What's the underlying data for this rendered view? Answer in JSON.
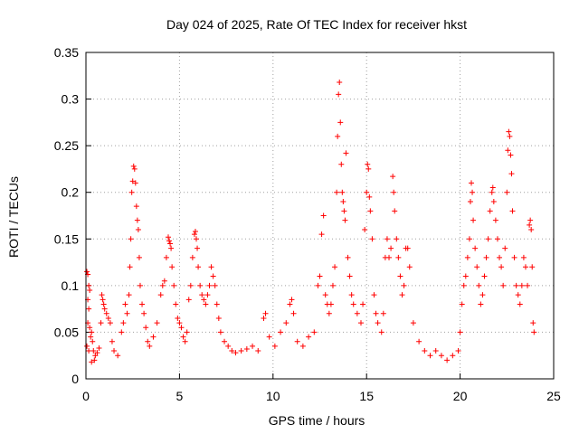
{
  "chart_data": {
    "type": "scatter",
    "title": "Day 024 of 2025, Rate Of TEC Index for receiver hkst",
    "xlabel": "GPS time / hours",
    "ylabel": "ROTI / TECUs",
    "xlim": [
      0,
      25
    ],
    "ylim": [
      0,
      0.35
    ],
    "x_ticks": [
      0,
      5,
      10,
      15,
      20,
      25
    ],
    "y_ticks": [
      0,
      0.05,
      0.1,
      0.15,
      0.2,
      0.25,
      0.3,
      0.35
    ],
    "x_tick_labels": [
      "0",
      "5",
      "10",
      "15",
      "20",
      "25"
    ],
    "y_tick_labels": [
      "0",
      "0.05",
      "0.1",
      "0.15",
      "0.2",
      "0.25",
      "0.3",
      "0.35"
    ],
    "grid": true,
    "marker": "plus",
    "series_color": "#ff0000",
    "series": [
      {
        "points": [
          [
            0.05,
            0.115
          ],
          [
            0.1,
            0.112
          ],
          [
            0.15,
            0.1
          ],
          [
            0.2,
            0.095
          ],
          [
            0.1,
            0.085
          ],
          [
            0.15,
            0.075
          ],
          [
            0.1,
            0.06
          ],
          [
            0.2,
            0.055
          ],
          [
            0.3,
            0.05
          ],
          [
            0.25,
            0.045
          ],
          [
            0.35,
            0.04
          ],
          [
            0.05,
            0.035
          ],
          [
            0.15,
            0.03
          ],
          [
            0.4,
            0.03
          ],
          [
            0.5,
            0.025
          ],
          [
            0.6,
            0.028
          ],
          [
            0.45,
            0.02
          ],
          [
            0.3,
            0.018
          ],
          [
            0.7,
            0.033
          ],
          [
            0.8,
            0.06
          ],
          [
            0.85,
            0.09
          ],
          [
            0.9,
            0.085
          ],
          [
            0.95,
            0.08
          ],
          [
            1.0,
            0.075
          ],
          [
            1.1,
            0.07
          ],
          [
            1.2,
            0.065
          ],
          [
            1.3,
            0.06
          ],
          [
            1.4,
            0.04
          ],
          [
            1.5,
            0.03
          ],
          [
            1.7,
            0.025
          ],
          [
            1.9,
            0.05
          ],
          [
            2.0,
            0.06
          ],
          [
            2.1,
            0.08
          ],
          [
            2.2,
            0.07
          ],
          [
            2.3,
            0.09
          ],
          [
            2.35,
            0.12
          ],
          [
            2.4,
            0.15
          ],
          [
            2.45,
            0.2
          ],
          [
            2.5,
            0.212
          ],
          [
            2.55,
            0.228
          ],
          [
            2.6,
            0.225
          ],
          [
            2.65,
            0.21
          ],
          [
            2.7,
            0.185
          ],
          [
            2.75,
            0.17
          ],
          [
            2.8,
            0.16
          ],
          [
            2.85,
            0.13
          ],
          [
            2.9,
            0.1
          ],
          [
            3.0,
            0.08
          ],
          [
            3.1,
            0.07
          ],
          [
            3.2,
            0.055
          ],
          [
            3.3,
            0.04
          ],
          [
            3.4,
            0.035
          ],
          [
            3.6,
            0.045
          ],
          [
            3.8,
            0.06
          ],
          [
            4.0,
            0.09
          ],
          [
            4.1,
            0.1
          ],
          [
            4.2,
            0.105
          ],
          [
            4.3,
            0.13
          ],
          [
            4.4,
            0.152
          ],
          [
            4.45,
            0.148
          ],
          [
            4.5,
            0.145
          ],
          [
            4.55,
            0.14
          ],
          [
            4.6,
            0.12
          ],
          [
            4.7,
            0.1
          ],
          [
            4.8,
            0.08
          ],
          [
            4.9,
            0.065
          ],
          [
            5.0,
            0.06
          ],
          [
            5.1,
            0.055
          ],
          [
            5.2,
            0.045
          ],
          [
            5.3,
            0.04
          ],
          [
            5.4,
            0.05
          ],
          [
            5.5,
            0.085
          ],
          [
            5.6,
            0.1
          ],
          [
            5.7,
            0.13
          ],
          [
            5.8,
            0.155
          ],
          [
            5.85,
            0.158
          ],
          [
            5.9,
            0.15
          ],
          [
            5.95,
            0.14
          ],
          [
            6.0,
            0.12
          ],
          [
            6.1,
            0.1
          ],
          [
            6.2,
            0.09
          ],
          [
            6.3,
            0.085
          ],
          [
            6.4,
            0.08
          ],
          [
            6.5,
            0.09
          ],
          [
            6.6,
            0.1
          ],
          [
            6.7,
            0.12
          ],
          [
            6.8,
            0.11
          ],
          [
            6.9,
            0.1
          ],
          [
            7.0,
            0.08
          ],
          [
            7.1,
            0.065
          ],
          [
            7.2,
            0.05
          ],
          [
            7.4,
            0.04
          ],
          [
            7.6,
            0.035
          ],
          [
            7.8,
            0.03
          ],
          [
            8.0,
            0.028
          ],
          [
            8.3,
            0.03
          ],
          [
            8.6,
            0.032
          ],
          [
            8.9,
            0.035
          ],
          [
            9.2,
            0.03
          ],
          [
            9.5,
            0.065
          ],
          [
            9.6,
            0.07
          ],
          [
            9.8,
            0.045
          ],
          [
            10.1,
            0.035
          ],
          [
            10.4,
            0.05
          ],
          [
            10.7,
            0.06
          ],
          [
            10.9,
            0.08
          ],
          [
            11.0,
            0.085
          ],
          [
            11.1,
            0.07
          ],
          [
            11.3,
            0.04
          ],
          [
            11.6,
            0.035
          ],
          [
            11.9,
            0.045
          ],
          [
            12.2,
            0.05
          ],
          [
            12.4,
            0.1
          ],
          [
            12.5,
            0.11
          ],
          [
            12.6,
            0.155
          ],
          [
            12.7,
            0.175
          ],
          [
            12.8,
            0.09
          ],
          [
            12.9,
            0.08
          ],
          [
            13.0,
            0.07
          ],
          [
            13.1,
            0.08
          ],
          [
            13.2,
            0.1
          ],
          [
            13.3,
            0.12
          ],
          [
            13.4,
            0.2
          ],
          [
            13.45,
            0.26
          ],
          [
            13.5,
            0.305
          ],
          [
            13.55,
            0.318
          ],
          [
            13.6,
            0.275
          ],
          [
            13.65,
            0.23
          ],
          [
            13.7,
            0.2
          ],
          [
            13.75,
            0.19
          ],
          [
            13.8,
            0.18
          ],
          [
            13.85,
            0.17
          ],
          [
            13.9,
            0.242
          ],
          [
            14.0,
            0.13
          ],
          [
            14.1,
            0.11
          ],
          [
            14.2,
            0.09
          ],
          [
            14.3,
            0.08
          ],
          [
            14.5,
            0.07
          ],
          [
            14.7,
            0.06
          ],
          [
            14.8,
            0.08
          ],
          [
            14.9,
            0.16
          ],
          [
            15.0,
            0.2
          ],
          [
            15.05,
            0.23
          ],
          [
            15.1,
            0.225
          ],
          [
            15.15,
            0.195
          ],
          [
            15.2,
            0.18
          ],
          [
            15.3,
            0.15
          ],
          [
            15.4,
            0.09
          ],
          [
            15.5,
            0.07
          ],
          [
            15.6,
            0.06
          ],
          [
            15.8,
            0.05
          ],
          [
            15.9,
            0.07
          ],
          [
            16.0,
            0.13
          ],
          [
            16.1,
            0.15
          ],
          [
            16.2,
            0.13
          ],
          [
            16.3,
            0.14
          ],
          [
            16.4,
            0.217
          ],
          [
            16.45,
            0.2
          ],
          [
            16.5,
            0.18
          ],
          [
            16.6,
            0.15
          ],
          [
            16.7,
            0.13
          ],
          [
            16.8,
            0.11
          ],
          [
            16.9,
            0.09
          ],
          [
            17.0,
            0.1
          ],
          [
            17.1,
            0.14
          ],
          [
            17.2,
            0.14
          ],
          [
            17.3,
            0.12
          ],
          [
            17.5,
            0.06
          ],
          [
            17.8,
            0.04
          ],
          [
            18.1,
            0.03
          ],
          [
            18.4,
            0.025
          ],
          [
            18.7,
            0.03
          ],
          [
            19.0,
            0.025
          ],
          [
            19.3,
            0.02
          ],
          [
            19.6,
            0.025
          ],
          [
            19.9,
            0.03
          ],
          [
            20.0,
            0.05
          ],
          [
            20.1,
            0.08
          ],
          [
            20.2,
            0.1
          ],
          [
            20.3,
            0.11
          ],
          [
            20.4,
            0.13
          ],
          [
            20.5,
            0.15
          ],
          [
            20.55,
            0.19
          ],
          [
            20.6,
            0.21
          ],
          [
            20.65,
            0.2
          ],
          [
            20.7,
            0.17
          ],
          [
            20.8,
            0.14
          ],
          [
            20.9,
            0.12
          ],
          [
            21.0,
            0.1
          ],
          [
            21.1,
            0.08
          ],
          [
            21.2,
            0.09
          ],
          [
            21.3,
            0.11
          ],
          [
            21.4,
            0.13
          ],
          [
            21.5,
            0.15
          ],
          [
            21.6,
            0.18
          ],
          [
            21.7,
            0.2
          ],
          [
            21.75,
            0.205
          ],
          [
            21.8,
            0.19
          ],
          [
            21.9,
            0.17
          ],
          [
            22.0,
            0.15
          ],
          [
            22.1,
            0.13
          ],
          [
            22.2,
            0.12
          ],
          [
            22.3,
            0.1
          ],
          [
            22.4,
            0.14
          ],
          [
            22.5,
            0.2
          ],
          [
            22.55,
            0.245
          ],
          [
            22.6,
            0.265
          ],
          [
            22.65,
            0.26
          ],
          [
            22.7,
            0.24
          ],
          [
            22.75,
            0.22
          ],
          [
            22.8,
            0.18
          ],
          [
            22.9,
            0.13
          ],
          [
            23.0,
            0.1
          ],
          [
            23.1,
            0.09
          ],
          [
            23.2,
            0.08
          ],
          [
            23.3,
            0.1
          ],
          [
            23.4,
            0.13
          ],
          [
            23.5,
            0.12
          ],
          [
            23.6,
            0.1
          ],
          [
            23.7,
            0.165
          ],
          [
            23.75,
            0.17
          ],
          [
            23.8,
            0.16
          ],
          [
            23.85,
            0.12
          ],
          [
            23.9,
            0.06
          ],
          [
            23.95,
            0.05
          ]
        ]
      }
    ]
  }
}
